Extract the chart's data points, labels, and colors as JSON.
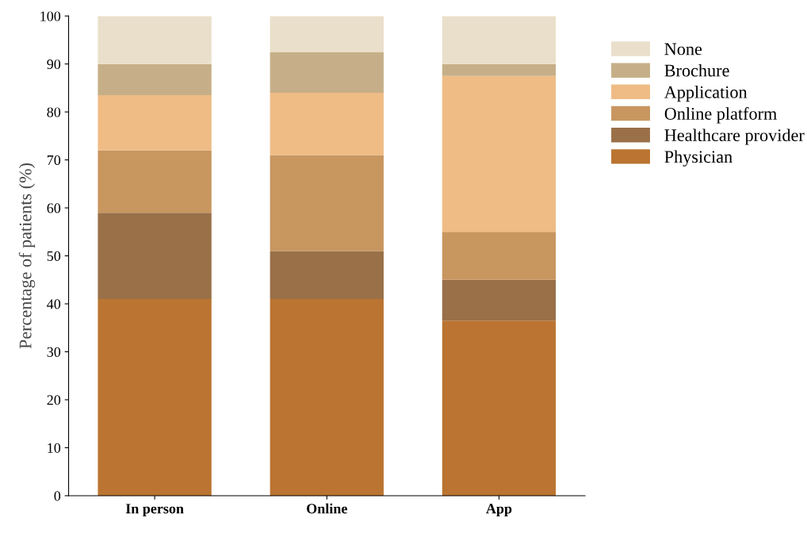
{
  "chart_data": {
    "type": "bar",
    "stacked": true,
    "ylabel": "Percentage of patients (%)",
    "categories": [
      "In person",
      "Online",
      "App"
    ],
    "series": [
      {
        "name": "Physician",
        "color": "#bb7431",
        "values": [
          41,
          41,
          36.5
        ]
      },
      {
        "name": "Healthcare provider",
        "color": "#997048",
        "values": [
          18,
          10,
          8.5
        ]
      },
      {
        "name": "Online platform",
        "color": "#c8965f",
        "values": [
          13,
          20,
          10
        ]
      },
      {
        "name": "Application",
        "color": "#efbc85",
        "values": [
          11.5,
          13,
          32.5
        ]
      },
      {
        "name": "Brochure",
        "color": "#c6af88",
        "values": [
          6.5,
          8.5,
          2.5
        ]
      },
      {
        "name": "None",
        "color": "#eadfca",
        "values": [
          10,
          7.5,
          10
        ]
      }
    ],
    "ylim": [
      0,
      100
    ],
    "yticks": [
      0,
      10,
      20,
      30,
      40,
      50,
      60,
      70,
      80,
      90,
      100
    ],
    "grid": false,
    "legend": "top right"
  }
}
